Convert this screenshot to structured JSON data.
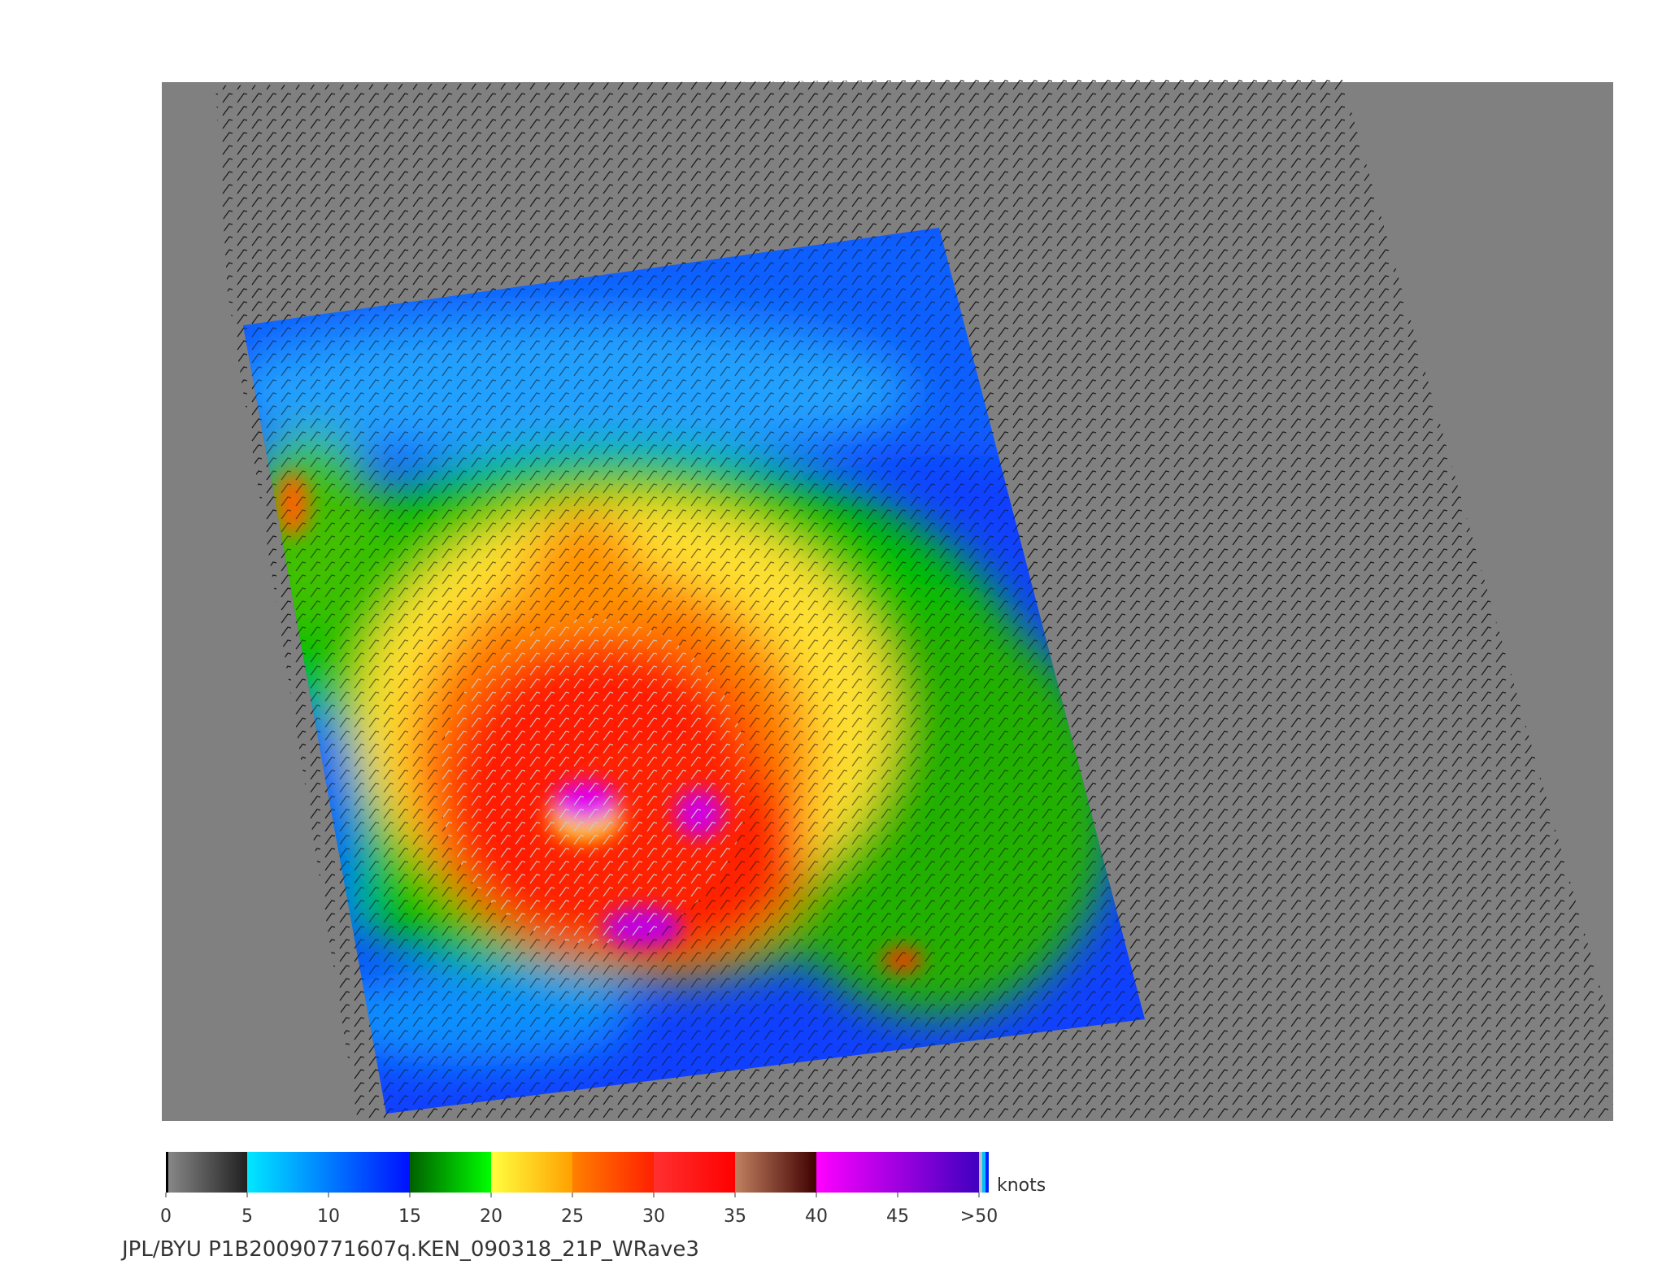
{
  "colorbar": {
    "ticks": [
      0,
      5,
      10,
      15,
      20,
      25,
      30,
      35,
      40,
      45,
      {
        "value": 50,
        "label": ">50"
      }
    ],
    "unit": "knots"
  },
  "footer": "JPL/BYU  P1B20090771607q.KEN_090318_21P_WRave3"
}
